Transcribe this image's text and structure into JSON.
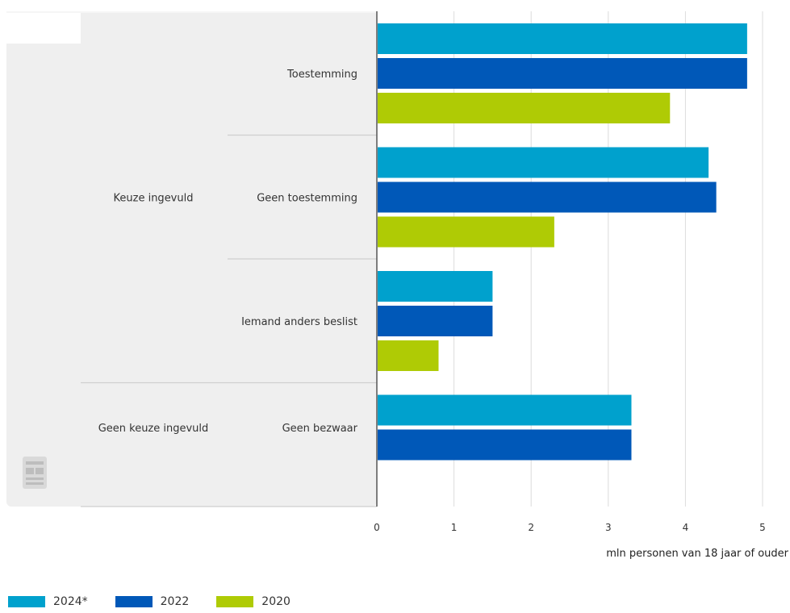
{
  "chart_data": {
    "type": "bar",
    "orientation": "horizontal",
    "groups": [
      {
        "label": "Keuze ingevuld",
        "categories": [
          "Toestemming",
          "Geen toestemming",
          "Iemand anders beslist"
        ]
      },
      {
        "label": "Geen keuze ingevuld",
        "categories": [
          "Geen bezwaar"
        ]
      }
    ],
    "categories": [
      "Toestemming",
      "Geen toestemming",
      "Iemand anders beslist",
      "Geen bezwaar"
    ],
    "series": [
      {
        "name": "2024*",
        "color": "#00a1cd",
        "values": [
          4.8,
          4.3,
          1.5,
          3.3
        ]
      },
      {
        "name": "2022",
        "color": "#0058b8",
        "values": [
          4.8,
          4.4,
          1.5,
          3.3
        ]
      },
      {
        "name": "2020",
        "color": "#afcb05",
        "values": [
          3.8,
          2.3,
          0.8,
          null
        ]
      }
    ],
    "xlabel": "mln personen van 18 jaar of ouder",
    "xlim": [
      0,
      5
    ],
    "xticks": [
      "0",
      "1",
      "2",
      "3",
      "4",
      "5"
    ],
    "grid": true,
    "legend_position": "bottom-left"
  }
}
